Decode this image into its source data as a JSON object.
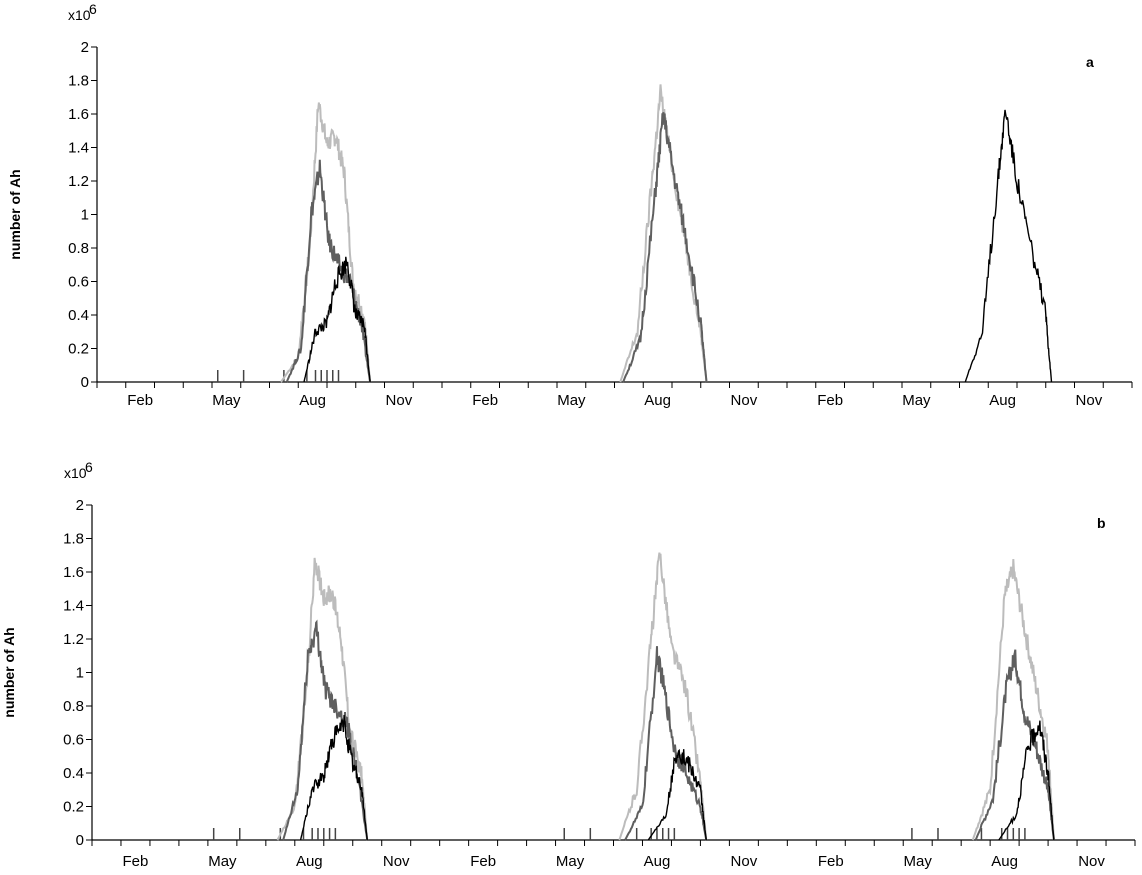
{
  "chart_data": [
    {
      "type": "line",
      "panel_label": "a",
      "ylabel": "number of Ah",
      "y_multiplier": "x10",
      "y_multiplier_exp": "6",
      "ylim": [
        0,
        2
      ],
      "yticks": [
        "0",
        "0.2",
        "0.4",
        "0.6",
        "0.8",
        "1",
        "1.2",
        "1.4",
        "1.6",
        "1.8",
        "2"
      ],
      "x_tick_labels": [
        "Feb",
        "May",
        "Aug",
        "Nov",
        "Feb",
        "May",
        "Aug",
        "Nov",
        "Feb",
        "May",
        "Aug",
        "Nov"
      ],
      "x_unit": "month index from January of year 1",
      "xlim": [
        0,
        36
      ],
      "grid": false,
      "legend": "none",
      "series": [
        {
          "color": "#bcbcbc",
          "seasons": [
            [
              6.4,
              0
            ],
            [
              7,
              0.15
            ],
            [
              7.4,
              0.8
            ],
            [
              7.7,
              1.67
            ],
            [
              8,
              1.42
            ],
            [
              8.3,
              1.47
            ],
            [
              8.6,
              1.25
            ],
            [
              8.9,
              0.6
            ],
            [
              9.3,
              0.38
            ],
            [
              9.5,
              0
            ]
          ],
          "peaks": [
            [
              18.2,
              0
            ],
            [
              18.8,
              0.3
            ],
            [
              19.3,
              1.2
            ],
            [
              19.6,
              1.73
            ],
            [
              20,
              1.3
            ],
            [
              20.5,
              0.8
            ],
            [
              21,
              0.3
            ],
            [
              21.2,
              0
            ]
          ]
        },
        {
          "color": "#5f5f5f",
          "seasons": [
            [
              6.6,
              0
            ],
            [
              7.1,
              0.2
            ],
            [
              7.45,
              1.0
            ],
            [
              7.75,
              1.28
            ],
            [
              8.05,
              0.85
            ],
            [
              8.4,
              0.7
            ],
            [
              8.8,
              0.6
            ],
            [
              9.2,
              0.34
            ],
            [
              9.5,
              0
            ]
          ],
          "peaks": [
            [
              18.3,
              0
            ],
            [
              18.9,
              0.25
            ],
            [
              19.4,
              1.1
            ],
            [
              19.7,
              1.6
            ],
            [
              20.1,
              1.2
            ],
            [
              20.5,
              0.85
            ],
            [
              21,
              0.35
            ],
            [
              21.2,
              0
            ]
          ]
        },
        {
          "color": "#000000",
          "seasons": [
            [
              7.2,
              0
            ],
            [
              7.6,
              0.3
            ],
            [
              8.0,
              0.35
            ],
            [
              8.3,
              0.6
            ],
            [
              8.7,
              0.72
            ],
            [
              9.0,
              0.4
            ],
            [
              9.3,
              0.34
            ],
            [
              9.5,
              0
            ]
          ],
          "peaks": [
            [
              30.2,
              0
            ],
            [
              30.8,
              0.3
            ],
            [
              31.3,
              1.15
            ],
            [
              31.6,
              1.63
            ],
            [
              32,
              1.2
            ],
            [
              32.5,
              0.8
            ],
            [
              33,
              0.4
            ],
            [
              33.2,
              0
            ]
          ]
        }
      ],
      "event_marks": [
        4.2,
        5.1,
        6.5,
        7.3,
        7.6,
        7.8,
        8.0,
        8.2,
        8.4
      ]
    },
    {
      "type": "line",
      "panel_label": "b",
      "ylabel": "number of Ah",
      "y_multiplier": "x10",
      "y_multiplier_exp": "6",
      "ylim": [
        0,
        2
      ],
      "yticks": [
        "0",
        "0.2",
        "0.4",
        "0.6",
        "0.8",
        "1",
        "1.2",
        "1.4",
        "1.6",
        "1.8",
        "2"
      ],
      "x_tick_labels": [
        "Feb",
        "May",
        "Aug",
        "Nov",
        "Feb",
        "May",
        "Aug",
        "Nov",
        "Feb",
        "May",
        "Aug",
        "Nov"
      ],
      "x_unit": "month index from January of year 1",
      "xlim": [
        0,
        36
      ],
      "grid": false,
      "legend": "none",
      "series": [
        {
          "color": "#bcbcbc",
          "seasons": [
            [
              6.4,
              0
            ],
            [
              7,
              0.2
            ],
            [
              7.4,
              0.9
            ],
            [
              7.7,
              1.67
            ],
            [
              8,
              1.45
            ],
            [
              8.3,
              1.47
            ],
            [
              8.6,
              1.2
            ],
            [
              8.9,
              0.65
            ],
            [
              9.3,
              0.4
            ],
            [
              9.5,
              0
            ]
          ],
          "peaks": [
            [
              18.2,
              0
            ],
            [
              18.8,
              0.3
            ],
            [
              19.3,
              1.2
            ],
            [
              19.6,
              1.72
            ],
            [
              20,
              1.15
            ],
            [
              20.5,
              0.9
            ],
            [
              21,
              0.35
            ],
            [
              21.2,
              0
            ]
          ]
        },
        {
          "color": "#5f5f5f",
          "seasons": [
            [
              6.6,
              0
            ],
            [
              7.1,
              0.3
            ],
            [
              7.45,
              1.1
            ],
            [
              7.75,
              1.26
            ],
            [
              8.05,
              0.9
            ],
            [
              8.4,
              0.8
            ],
            [
              8.8,
              0.7
            ],
            [
              9.2,
              0.35
            ],
            [
              9.5,
              0
            ]
          ],
          "peaks": [
            [
              18.4,
              0
            ],
            [
              19.0,
              0.2
            ],
            [
              19.5,
              1.1
            ],
            [
              19.7,
              0.95
            ],
            [
              20.1,
              0.55
            ],
            [
              20.5,
              0.4
            ],
            [
              21,
              0.2
            ],
            [
              21.2,
              0
            ]
          ]
        },
        {
          "color": "#000000",
          "seasons": [
            [
              7.2,
              0
            ],
            [
              7.6,
              0.3
            ],
            [
              8.0,
              0.38
            ],
            [
              8.3,
              0.6
            ],
            [
              8.7,
              0.7
            ],
            [
              9.0,
              0.45
            ],
            [
              9.3,
              0.32
            ],
            [
              9.5,
              0
            ]
          ],
          "peaks": [
            [
              19.2,
              0
            ],
            [
              19.8,
              0.15
            ],
            [
              20.2,
              0.55
            ],
            [
              20.6,
              0.45
            ],
            [
              21,
              0.3
            ],
            [
              21.2,
              0
            ]
          ]
        }
      ],
      "third_season": [
        {
          "color": "#bcbcbc",
          "points": [
            [
              30.4,
              0
            ],
            [
              31,
              0.3
            ],
            [
              31.5,
              1.45
            ],
            [
              31.8,
              1.62
            ],
            [
              32.2,
              1.25
            ],
            [
              32.6,
              0.9
            ],
            [
              33,
              0.55
            ],
            [
              33.2,
              0
            ]
          ]
        },
        {
          "color": "#5f5f5f",
          "points": [
            [
              30.5,
              0
            ],
            [
              31.1,
              0.25
            ],
            [
              31.55,
              0.9
            ],
            [
              31.85,
              1.1
            ],
            [
              32.2,
              0.75
            ],
            [
              32.6,
              0.55
            ],
            [
              33,
              0.3
            ],
            [
              33.2,
              0
            ]
          ]
        },
        {
          "color": "#000000",
          "points": [
            [
              31.3,
              0
            ],
            [
              31.9,
              0.15
            ],
            [
              32.3,
              0.55
            ],
            [
              32.7,
              0.7
            ],
            [
              33,
              0.4
            ],
            [
              33.2,
              0
            ]
          ]
        }
      ],
      "event_marks": [
        4.2,
        5.1,
        6.5,
        7.3,
        7.6,
        7.8,
        8.0,
        8.2,
        8.4,
        16.3,
        17.2,
        18.8,
        19.3,
        19.5,
        19.7,
        19.9,
        20.1,
        28.3,
        29.2,
        30.7,
        31.4,
        31.6,
        31.8,
        32.0,
        32.2
      ]
    }
  ]
}
